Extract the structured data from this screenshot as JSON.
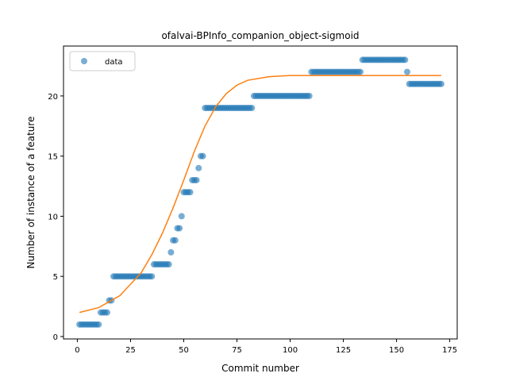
{
  "chart_data": {
    "type": "scatter",
    "title": "ofalvai-BPInfo_companion_object-sigmoid",
    "xlabel": "Commit number",
    "ylabel": "Number of instance of a feature",
    "xlim": [
      -6.5,
      178.5
    ],
    "ylim": [
      -0.2,
      24.15
    ],
    "xticks": [
      0,
      25,
      50,
      75,
      100,
      125,
      150,
      175
    ],
    "yticks": [
      0,
      5,
      10,
      15,
      20
    ],
    "grid": false,
    "legend": {
      "position": "top-left",
      "entries": [
        "data"
      ]
    },
    "series": [
      {
        "name": "data",
        "kind": "scatter",
        "color": "#1f77b4",
        "points": [
          [
            1,
            1
          ],
          [
            2,
            1
          ],
          [
            3,
            1
          ],
          [
            4,
            1
          ],
          [
            5,
            1
          ],
          [
            6,
            1
          ],
          [
            7,
            1
          ],
          [
            8,
            1
          ],
          [
            9,
            1
          ],
          [
            10,
            1
          ],
          [
            11,
            2
          ],
          [
            12,
            2
          ],
          [
            13,
            2
          ],
          [
            14,
            2
          ],
          [
            15,
            3
          ],
          [
            16,
            3
          ],
          [
            17,
            5
          ],
          [
            18,
            5
          ],
          [
            19,
            5
          ],
          [
            20,
            5
          ],
          [
            21,
            5
          ],
          [
            22,
            5
          ],
          [
            23,
            5
          ],
          [
            24,
            5
          ],
          [
            25,
            5
          ],
          [
            26,
            5
          ],
          [
            27,
            5
          ],
          [
            28,
            5
          ],
          [
            29,
            5
          ],
          [
            30,
            5
          ],
          [
            31,
            5
          ],
          [
            32,
            5
          ],
          [
            33,
            5
          ],
          [
            34,
            5
          ],
          [
            35,
            5
          ],
          [
            36,
            6
          ],
          [
            37,
            6
          ],
          [
            38,
            6
          ],
          [
            39,
            6
          ],
          [
            40,
            6
          ],
          [
            41,
            6
          ],
          [
            42,
            6
          ],
          [
            43,
            6
          ],
          [
            44,
            7
          ],
          [
            45,
            8
          ],
          [
            46,
            8
          ],
          [
            47,
            9
          ],
          [
            48,
            9
          ],
          [
            49,
            10
          ],
          [
            50,
            12
          ],
          [
            51,
            12
          ],
          [
            52,
            12
          ],
          [
            53,
            12
          ],
          [
            54,
            13
          ],
          [
            55,
            13
          ],
          [
            56,
            13
          ],
          [
            57,
            14
          ],
          [
            58,
            15
          ],
          [
            59,
            15
          ],
          [
            60,
            19
          ],
          [
            61,
            19
          ],
          [
            62,
            19
          ],
          [
            63,
            19
          ],
          [
            64,
            19
          ],
          [
            65,
            19
          ],
          [
            66,
            19
          ],
          [
            67,
            19
          ],
          [
            68,
            19
          ],
          [
            69,
            19
          ],
          [
            70,
            19
          ],
          [
            71,
            19
          ],
          [
            72,
            19
          ],
          [
            73,
            19
          ],
          [
            74,
            19
          ],
          [
            75,
            19
          ],
          [
            76,
            19
          ],
          [
            77,
            19
          ],
          [
            78,
            19
          ],
          [
            79,
            19
          ],
          [
            80,
            19
          ],
          [
            81,
            19
          ],
          [
            82,
            19
          ],
          [
            83,
            20
          ],
          [
            84,
            20
          ],
          [
            85,
            20
          ],
          [
            86,
            20
          ],
          [
            87,
            20
          ],
          [
            88,
            20
          ],
          [
            89,
            20
          ],
          [
            90,
            20
          ],
          [
            91,
            20
          ],
          [
            92,
            20
          ],
          [
            93,
            20
          ],
          [
            94,
            20
          ],
          [
            95,
            20
          ],
          [
            96,
            20
          ],
          [
            97,
            20
          ],
          [
            98,
            20
          ],
          [
            99,
            20
          ],
          [
            100,
            20
          ],
          [
            101,
            20
          ],
          [
            102,
            20
          ],
          [
            103,
            20
          ],
          [
            104,
            20
          ],
          [
            105,
            20
          ],
          [
            106,
            20
          ],
          [
            107,
            20
          ],
          [
            108,
            20
          ],
          [
            109,
            20
          ],
          [
            110,
            22
          ],
          [
            111,
            22
          ],
          [
            112,
            22
          ],
          [
            113,
            22
          ],
          [
            114,
            22
          ],
          [
            115,
            22
          ],
          [
            116,
            22
          ],
          [
            117,
            22
          ],
          [
            118,
            22
          ],
          [
            119,
            22
          ],
          [
            120,
            22
          ],
          [
            121,
            22
          ],
          [
            122,
            22
          ],
          [
            123,
            22
          ],
          [
            124,
            22
          ],
          [
            125,
            22
          ],
          [
            126,
            22
          ],
          [
            127,
            22
          ],
          [
            128,
            22
          ],
          [
            129,
            22
          ],
          [
            130,
            22
          ],
          [
            131,
            22
          ],
          [
            132,
            22
          ],
          [
            133,
            22
          ],
          [
            134,
            23
          ],
          [
            135,
            23
          ],
          [
            136,
            23
          ],
          [
            137,
            23
          ],
          [
            138,
            23
          ],
          [
            139,
            23
          ],
          [
            140,
            23
          ],
          [
            141,
            23
          ],
          [
            142,
            23
          ],
          [
            143,
            23
          ],
          [
            144,
            23
          ],
          [
            145,
            23
          ],
          [
            146,
            23
          ],
          [
            147,
            23
          ],
          [
            148,
            23
          ],
          [
            149,
            23
          ],
          [
            150,
            23
          ],
          [
            151,
            23
          ],
          [
            152,
            23
          ],
          [
            153,
            23
          ],
          [
            154,
            23
          ],
          [
            155,
            22
          ],
          [
            156,
            21
          ],
          [
            157,
            21
          ],
          [
            158,
            21
          ],
          [
            159,
            21
          ],
          [
            160,
            21
          ],
          [
            161,
            21
          ],
          [
            162,
            21
          ],
          [
            163,
            21
          ],
          [
            164,
            21
          ],
          [
            165,
            21
          ],
          [
            166,
            21
          ],
          [
            167,
            21
          ],
          [
            168,
            21
          ],
          [
            169,
            21
          ],
          [
            170,
            21
          ],
          [
            171,
            21
          ]
        ]
      },
      {
        "name": "",
        "kind": "line",
        "color": "#ff7f0e",
        "points": [
          [
            1,
            2.0
          ],
          [
            10,
            2.4
          ],
          [
            20,
            3.4
          ],
          [
            30,
            5.3
          ],
          [
            35,
            6.8
          ],
          [
            40,
            8.6
          ],
          [
            45,
            10.7
          ],
          [
            50,
            13.0
          ],
          [
            55,
            15.4
          ],
          [
            60,
            17.5
          ],
          [
            65,
            19.1
          ],
          [
            70,
            20.2
          ],
          [
            75,
            20.9
          ],
          [
            80,
            21.3
          ],
          [
            90,
            21.6
          ],
          [
            100,
            21.7
          ],
          [
            110,
            21.7
          ],
          [
            130,
            21.7
          ],
          [
            150,
            21.7
          ],
          [
            171,
            21.7
          ]
        ]
      }
    ]
  }
}
